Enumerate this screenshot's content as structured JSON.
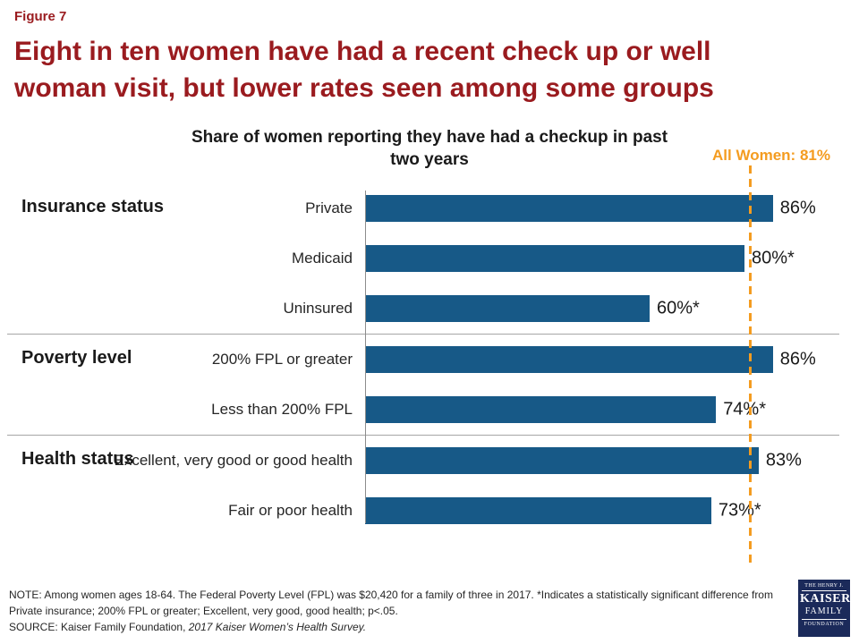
{
  "figure_label": "Figure 7",
  "title": "Eight in ten women have had a recent check up or well woman visit, but lower rates seen among some groups",
  "colors": {
    "title_red": "#9A1B1F",
    "bar_blue": "#175987",
    "reference_orange": "#F49C20"
  },
  "chart_data": {
    "type": "bar",
    "orientation": "horizontal",
    "title": "Share of women reporting they have had a checkup in past two years",
    "xlim": [
      0,
      100
    ],
    "unit": "percent",
    "grid": false,
    "bar_color": "#175987",
    "reference_line": {
      "label": "All Women: 81%",
      "value": 81,
      "color": "#F49C20",
      "style": "dashed"
    },
    "groups": [
      {
        "label": "Insurance status",
        "rows": [
          {
            "category": "Private",
            "value": 86,
            "display": "86%"
          },
          {
            "category": "Medicaid",
            "value": 80,
            "display": "80%*"
          },
          {
            "category": "Uninsured",
            "value": 60,
            "display": "60%*"
          }
        ]
      },
      {
        "label": "Poverty level",
        "rows": [
          {
            "category": "200% FPL or greater",
            "value": 86,
            "display": "86%"
          },
          {
            "category": "Less than 200% FPL",
            "value": 74,
            "display": "74%*"
          }
        ]
      },
      {
        "label": "Health status",
        "rows": [
          {
            "category": "Excellent, very good or good health",
            "value": 83,
            "display": "83%"
          },
          {
            "category": "Fair or poor health",
            "value": 73,
            "display": "73%*"
          }
        ]
      }
    ]
  },
  "notes": {
    "note": "NOTE: Among women ages 18-64. The Federal Poverty Level (FPL) was $20,420 for a family of three in 2017. *Indicates a statistically significant difference from Private insurance; 200% FPL or greater; Excellent, very good, good health; p<.05.",
    "source_prefix": "SOURCE: Kaiser Family Foundation, ",
    "source_title": "2017 Kaiser Women’s Health Survey."
  },
  "logo": {
    "line1": "THE HENRY J.",
    "line2": "KAISER",
    "line3": "FAMILY",
    "line4": "FOUNDATION"
  }
}
